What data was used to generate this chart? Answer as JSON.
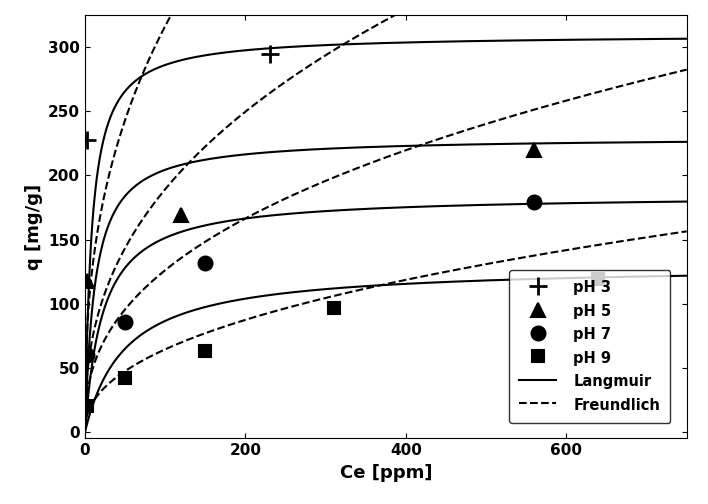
{
  "title": "",
  "xlabel": "Ce [ppm]",
  "ylabel": "q [mg/g]",
  "xlim": [
    0,
    750
  ],
  "ylim": [
    -5,
    325
  ],
  "xticks": [
    0,
    200,
    400,
    600
  ],
  "yticks": [
    0,
    50,
    100,
    150,
    200,
    250,
    300
  ],
  "scatter_data": {
    "pH3": {
      "x": [
        2,
        230
      ],
      "y": [
        228,
        295
      ]
    },
    "pH5": {
      "x": [
        2,
        120,
        560
      ],
      "y": [
        118,
        169,
        220
      ]
    },
    "pH7": {
      "x": [
        2,
        50,
        150,
        560
      ],
      "y": [
        60,
        86,
        132,
        179
      ]
    },
    "pH9": {
      "x": [
        2,
        50,
        150,
        310,
        640
      ],
      "y": [
        20,
        42,
        63,
        97,
        119
      ]
    }
  },
  "langmuir_params": {
    "pH3": {
      "qm": 310,
      "KL": 0.12
    },
    "pH5": {
      "qm": 230,
      "KL": 0.08
    },
    "pH7": {
      "qm": 185,
      "KL": 0.045
    },
    "pH9": {
      "qm": 130,
      "KL": 0.02
    }
  },
  "freundlich_params": {
    "pH3": {
      "KF": 55,
      "n": 0.38
    },
    "pH5": {
      "KF": 30,
      "n": 0.4
    },
    "pH7": {
      "KF": 20,
      "n": 0.4
    },
    "pH9": {
      "KF": 8.5,
      "n": 0.44
    }
  },
  "background_color": "#ffffff"
}
